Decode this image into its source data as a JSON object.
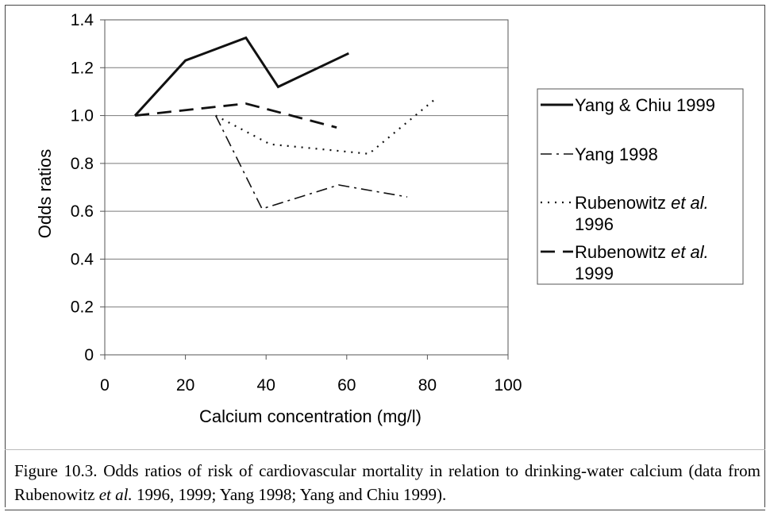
{
  "chart_data": {
    "type": "line",
    "title": "",
    "xlabel": "Calcium concentration (mg/l)",
    "ylabel": "Odds ratios",
    "xlim": [
      0,
      100
    ],
    "ylim": [
      0,
      1.4
    ],
    "x_ticks": [
      "0",
      "20",
      "40",
      "60",
      "80",
      "100"
    ],
    "y_ticks": [
      "0",
      "0.2",
      "0.4",
      "0.6",
      "0.8",
      "1.0",
      "1.2",
      "1.4"
    ],
    "gridlines": "horizontal",
    "legend_position": "right",
    "series": [
      {
        "name": "Yang & Chiu 1999",
        "dash": "solid",
        "x": [
          7.5,
          20,
          35,
          43,
          60.5
        ],
        "y": [
          1.0,
          1.23,
          1.325,
          1.12,
          1.26
        ]
      },
      {
        "name": "Yang 1998",
        "dash": "dashdot",
        "x": [
          27.5,
          39,
          58,
          75
        ],
        "y": [
          1.0,
          0.61,
          0.71,
          0.66
        ]
      },
      {
        "name": "Rubenowitz et al. 1996",
        "dash": "dotted",
        "x": [
          27.5,
          41,
          65.5,
          82
        ],
        "y": [
          1.0,
          0.88,
          0.84,
          1.07
        ]
      },
      {
        "name": "Rubenowitz et al. 1999",
        "dash": "longdash",
        "x": [
          7.5,
          35,
          57.5
        ],
        "y": [
          1.0,
          1.05,
          0.95
        ]
      }
    ]
  },
  "legend": {
    "items": [
      {
        "line1": "Yang & Chiu 1999",
        "line2_pre": "",
        "line2_em": "",
        "line2_post": ""
      },
      {
        "line1": "Yang 1998",
        "line2_pre": "",
        "line2_em": "",
        "line2_post": ""
      },
      {
        "line1": "Rubenowitz ",
        "line1_em": "et al.",
        "line2": "1996"
      },
      {
        "line1": "Rubenowitz ",
        "line1_em": "et al.",
        "line2": "1999"
      }
    ]
  },
  "caption": {
    "part1": "Figure 10.3. Odds ratios of risk of cardiovascular mortality in relation to drinking-water calcium (data from Rubenowitz ",
    "em": "et al.",
    "part2": " 1996, 1999; Yang 1998; Yang and Chiu 1999)."
  }
}
